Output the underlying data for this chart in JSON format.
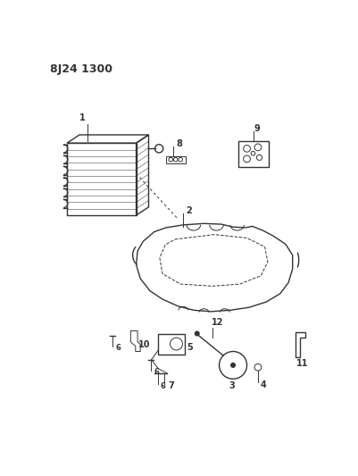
{
  "title": "8J24 1300",
  "bg_color": "#ffffff",
  "line_color": "#333333",
  "fig_width": 4.02,
  "fig_height": 5.33,
  "dpi": 100
}
